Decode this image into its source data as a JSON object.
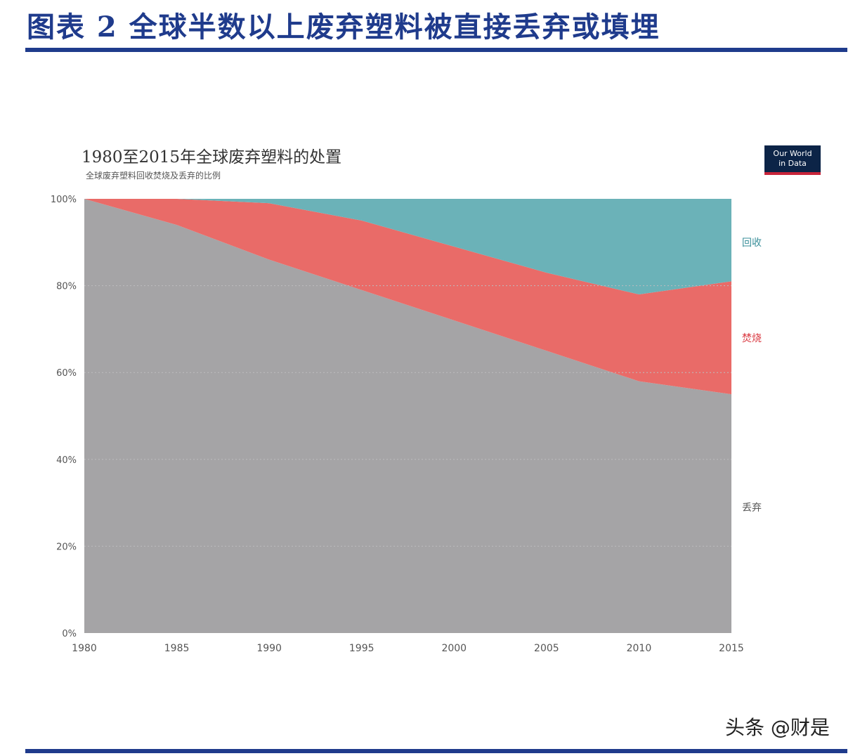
{
  "header": {
    "figure_title": "图表 2 全球半数以上废弃塑料被直接丢弃或填埋"
  },
  "logo": {
    "line1": "Our World",
    "line2": "in Data"
  },
  "watermark": "头条 @财是",
  "colors": {
    "discarded": "#a5a4a6",
    "incinerated": "#e96b68",
    "recycled": "#6bb2b8",
    "rule": "#1f3b8c",
    "label_discarded": "#555555",
    "label_incinerated": "#d9363e",
    "label_recycled": "#3a8f9a"
  },
  "chart_data": {
    "type": "area",
    "stacked": "percent",
    "title": "1980至2015年全球废弃塑料的处置",
    "subtitle": "全球废弃塑料回收焚烧及丢弃的比例",
    "x": [
      1980,
      1985,
      1990,
      1995,
      2000,
      2005,
      2010,
      2015
    ],
    "x_tick_labels": [
      "1980",
      "1985",
      "1990",
      "1995",
      "2000",
      "2005",
      "2010",
      "2015"
    ],
    "y_tick_labels": [
      "0%",
      "20%",
      "40%",
      "60%",
      "80%",
      "100%"
    ],
    "ylim": [
      0,
      100
    ],
    "grid": "horizontal",
    "legend_placement": "right (inline labels)",
    "series": [
      {
        "name": "丢弃",
        "color": "#a5a4a6",
        "values": [
          100,
          94,
          86,
          79,
          72,
          65,
          58,
          55
        ]
      },
      {
        "name": "焚烧",
        "color": "#e96b68",
        "values": [
          0,
          6,
          13,
          16,
          17,
          18,
          20,
          26
        ]
      },
      {
        "name": "回收",
        "color": "#6bb2b8",
        "values": [
          0,
          0,
          1,
          5,
          11,
          17,
          22,
          19
        ]
      }
    ]
  }
}
